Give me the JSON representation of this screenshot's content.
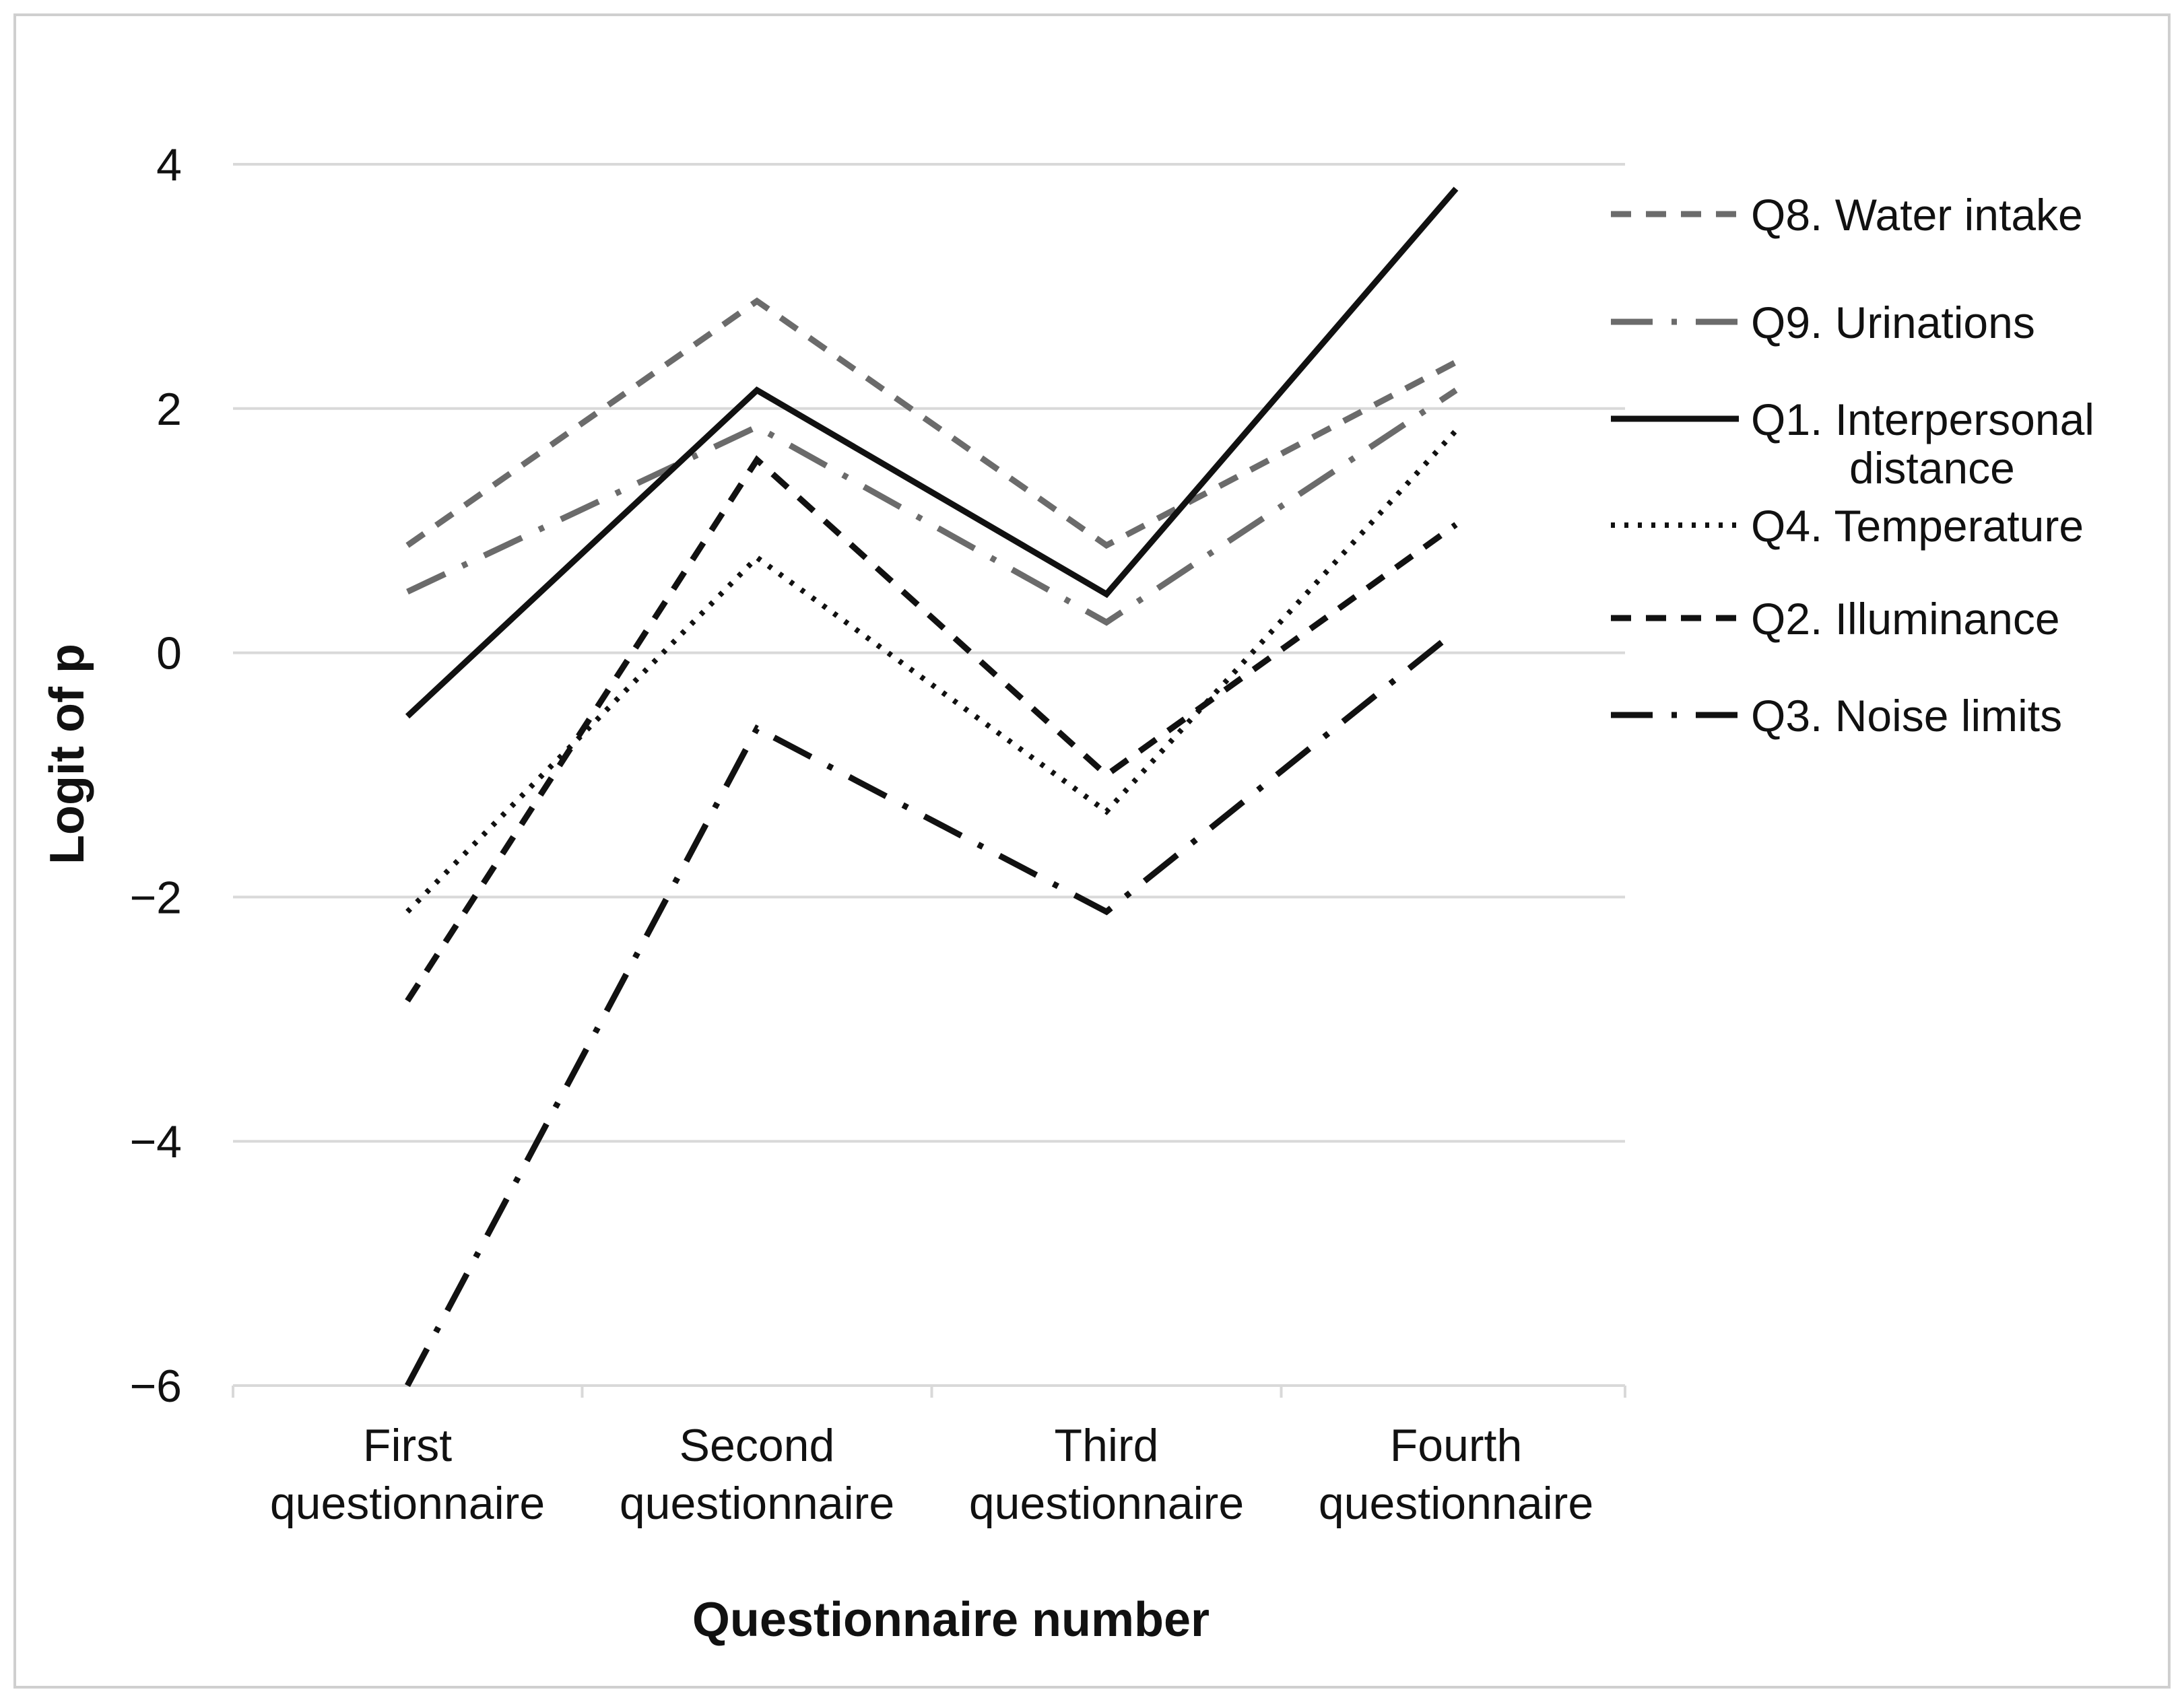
{
  "chart_data": {
    "type": "line",
    "categories": [
      "First\nquestionnaire",
      "Second\nquestionnaire",
      "Third\nquestionnaire",
      "Fourth\nquestionnaire"
    ],
    "xlabel": "Questionnaire number",
    "ylabel": "Logit of p",
    "ylim": [
      -6,
      4
    ],
    "yticks": [
      4,
      2,
      0,
      -2,
      -4,
      -6
    ],
    "ytick_labels": [
      "4",
      "2",
      "0",
      "−2",
      "−4",
      "−6"
    ],
    "grid": "horizontal",
    "legend_position": "right",
    "series": [
      {
        "name": "Q8. Water intake",
        "values": [
          0.88,
          2.88,
          0.88,
          2.38
        ],
        "color": "#6b6b6b",
        "dash": "dashed"
      },
      {
        "name": "Q9. Urinations",
        "values": [
          0.5,
          1.85,
          0.25,
          2.15
        ],
        "color": "#6b6b6b",
        "dash": "long-dash-dot"
      },
      {
        "name": "Q1. Interpersonal distance",
        "values": [
          -0.52,
          2.15,
          0.48,
          3.8
        ],
        "color": "#111111",
        "dash": "solid"
      },
      {
        "name": "Q4. Temperature",
        "values": [
          -2.12,
          0.78,
          -1.3,
          1.82
        ],
        "color": "#111111",
        "dash": "dotted"
      },
      {
        "name": "Q2. Illuminance",
        "values": [
          -2.85,
          1.58,
          -1.0,
          1.05
        ],
        "color": "#111111",
        "dash": "dashed"
      },
      {
        "name": "Q3. Noise limits",
        "values": [
          -6.0,
          -0.62,
          -2.12,
          0.18
        ],
        "color": "#111111",
        "dash": "long-dash-dot"
      }
    ]
  },
  "legend_labels": [
    [
      "Q8. Water intake"
    ],
    [
      "Q9. Urinations"
    ],
    [
      "Q1. Interpersonal",
      "distance"
    ],
    [
      "Q4. Temperature"
    ],
    [
      "Q2. Illuminance"
    ],
    [
      "Q3. Noise limits"
    ]
  ]
}
